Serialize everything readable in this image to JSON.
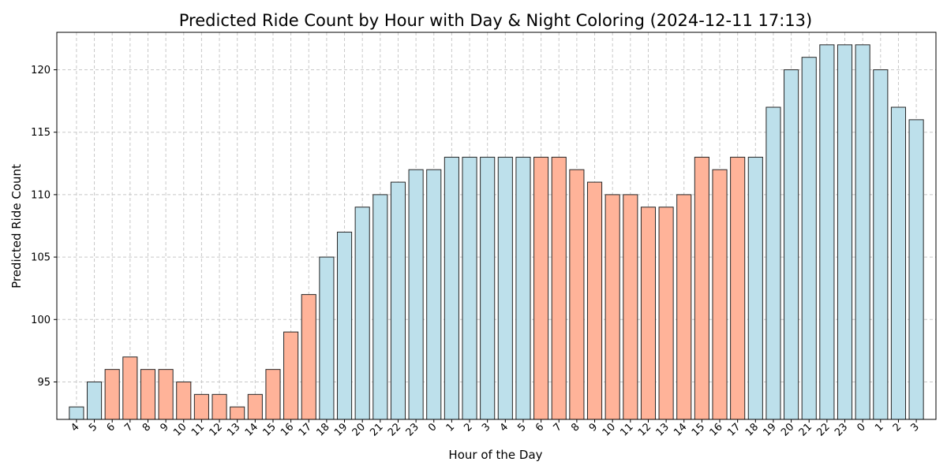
{
  "chart_data": {
    "type": "bar",
    "title": "Predicted Ride Count by Hour with Day & Night Coloring (2024-12-11 17:13)",
    "xlabel": "Hour of the Day",
    "ylabel": "Predicted Ride Count",
    "categories": [
      "4",
      "5",
      "6",
      "7",
      "8",
      "9",
      "10",
      "11",
      "12",
      "13",
      "14",
      "15",
      "16",
      "17",
      "18",
      "19",
      "20",
      "21",
      "22",
      "23",
      "0",
      "1",
      "2",
      "3",
      "4",
      "5",
      "6",
      "7",
      "8",
      "9",
      "10",
      "11",
      "12",
      "13",
      "14",
      "15",
      "16",
      "17",
      "18",
      "19",
      "20",
      "21",
      "22",
      "23",
      "0",
      "1",
      "2",
      "3"
    ],
    "values": [
      93,
      95,
      96,
      97,
      96,
      96,
      95,
      94,
      94,
      93,
      94,
      96,
      99,
      102,
      105,
      107,
      109,
      110,
      111,
      112,
      112,
      113,
      113,
      113,
      113,
      113,
      113,
      113,
      112,
      111,
      110,
      110,
      109,
      109,
      110,
      113,
      112,
      113,
      113,
      117,
      120,
      121,
      122,
      122,
      122,
      120,
      117,
      116
    ],
    "period": [
      "night",
      "night",
      "day",
      "day",
      "day",
      "day",
      "day",
      "day",
      "day",
      "day",
      "day",
      "day",
      "day",
      "day",
      "night",
      "night",
      "night",
      "night",
      "night",
      "night",
      "night",
      "night",
      "night",
      "night",
      "night",
      "night",
      "day",
      "day",
      "day",
      "day",
      "day",
      "day",
      "day",
      "day",
      "day",
      "day",
      "day",
      "day",
      "night",
      "night",
      "night",
      "night",
      "night",
      "night",
      "night",
      "night",
      "night",
      "night"
    ],
    "colors": {
      "day": "#ffb399",
      "night": "#bde0eb",
      "edge": "#262626",
      "grid": "#c8c8c8"
    },
    "ylim": [
      92,
      123
    ],
    "yticks": [
      95,
      100,
      105,
      110,
      115,
      120
    ],
    "grid": true
  }
}
